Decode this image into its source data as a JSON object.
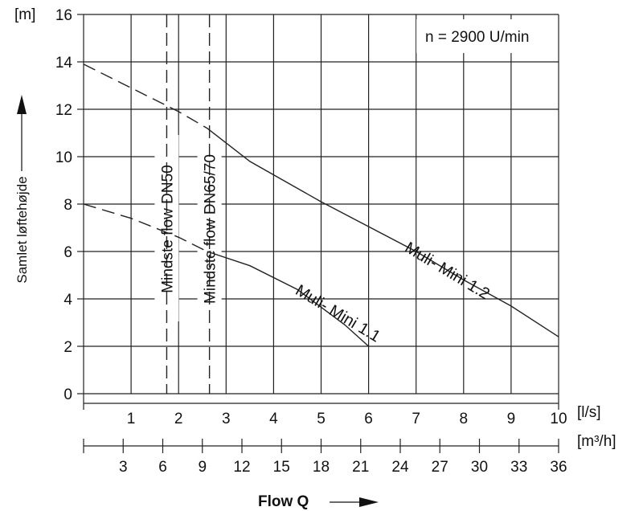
{
  "chart_data": {
    "type": "line",
    "speed_note": "n = 2900 U/min",
    "y_unit": "[m]",
    "x_unit_primary": "[l/s]",
    "x_unit_secondary": "[m³/h]",
    "ylabel": "Samlet løftehøjde",
    "xlabel": "Flow Q",
    "ylim": [
      0,
      16
    ],
    "xlim": [
      0,
      10
    ],
    "y_ticks": [
      "0",
      "2",
      "4",
      "6",
      "8",
      "10",
      "12",
      "14",
      "16"
    ],
    "x_ticks_primary": [
      "1",
      "2",
      "3",
      "4",
      "5",
      "6",
      "7",
      "8",
      "9",
      "10"
    ],
    "x_ticks_secondary": [
      "3",
      "6",
      "9",
      "12",
      "15",
      "18",
      "21",
      "24",
      "27",
      "30",
      "33",
      "36"
    ],
    "grid": true,
    "series": [
      {
        "name": "Muli- Mini 1.1",
        "label_at": [
          5.3,
          3.2
        ],
        "label_angle_deg": 31,
        "dashed_until_x": 2.6,
        "points": [
          [
            0,
            8.0
          ],
          [
            1,
            7.4
          ],
          [
            2,
            6.6
          ],
          [
            2.6,
            6.0
          ],
          [
            3.5,
            5.4
          ],
          [
            4.5,
            4.4
          ],
          [
            5.5,
            2.9
          ],
          [
            6.0,
            2.0
          ]
        ]
      },
      {
        "name": "Muli- Mini 1.2",
        "label_at": [
          7.6,
          5.0
        ],
        "label_angle_deg": 31,
        "dashed_until_x": 2.6,
        "points": [
          [
            0,
            13.9
          ],
          [
            1,
            12.9
          ],
          [
            2,
            11.9
          ],
          [
            2.6,
            11.2
          ],
          [
            3.5,
            9.8
          ],
          [
            5,
            8.1
          ],
          [
            7,
            6.0
          ],
          [
            8,
            4.8
          ],
          [
            9,
            3.7
          ],
          [
            10,
            2.4
          ]
        ]
      }
    ],
    "annotations": [
      {
        "text": "Mindste flow DN50",
        "x": 1.75
      },
      {
        "text": "Mindste flow DN65/70",
        "x": 2.65
      }
    ]
  }
}
